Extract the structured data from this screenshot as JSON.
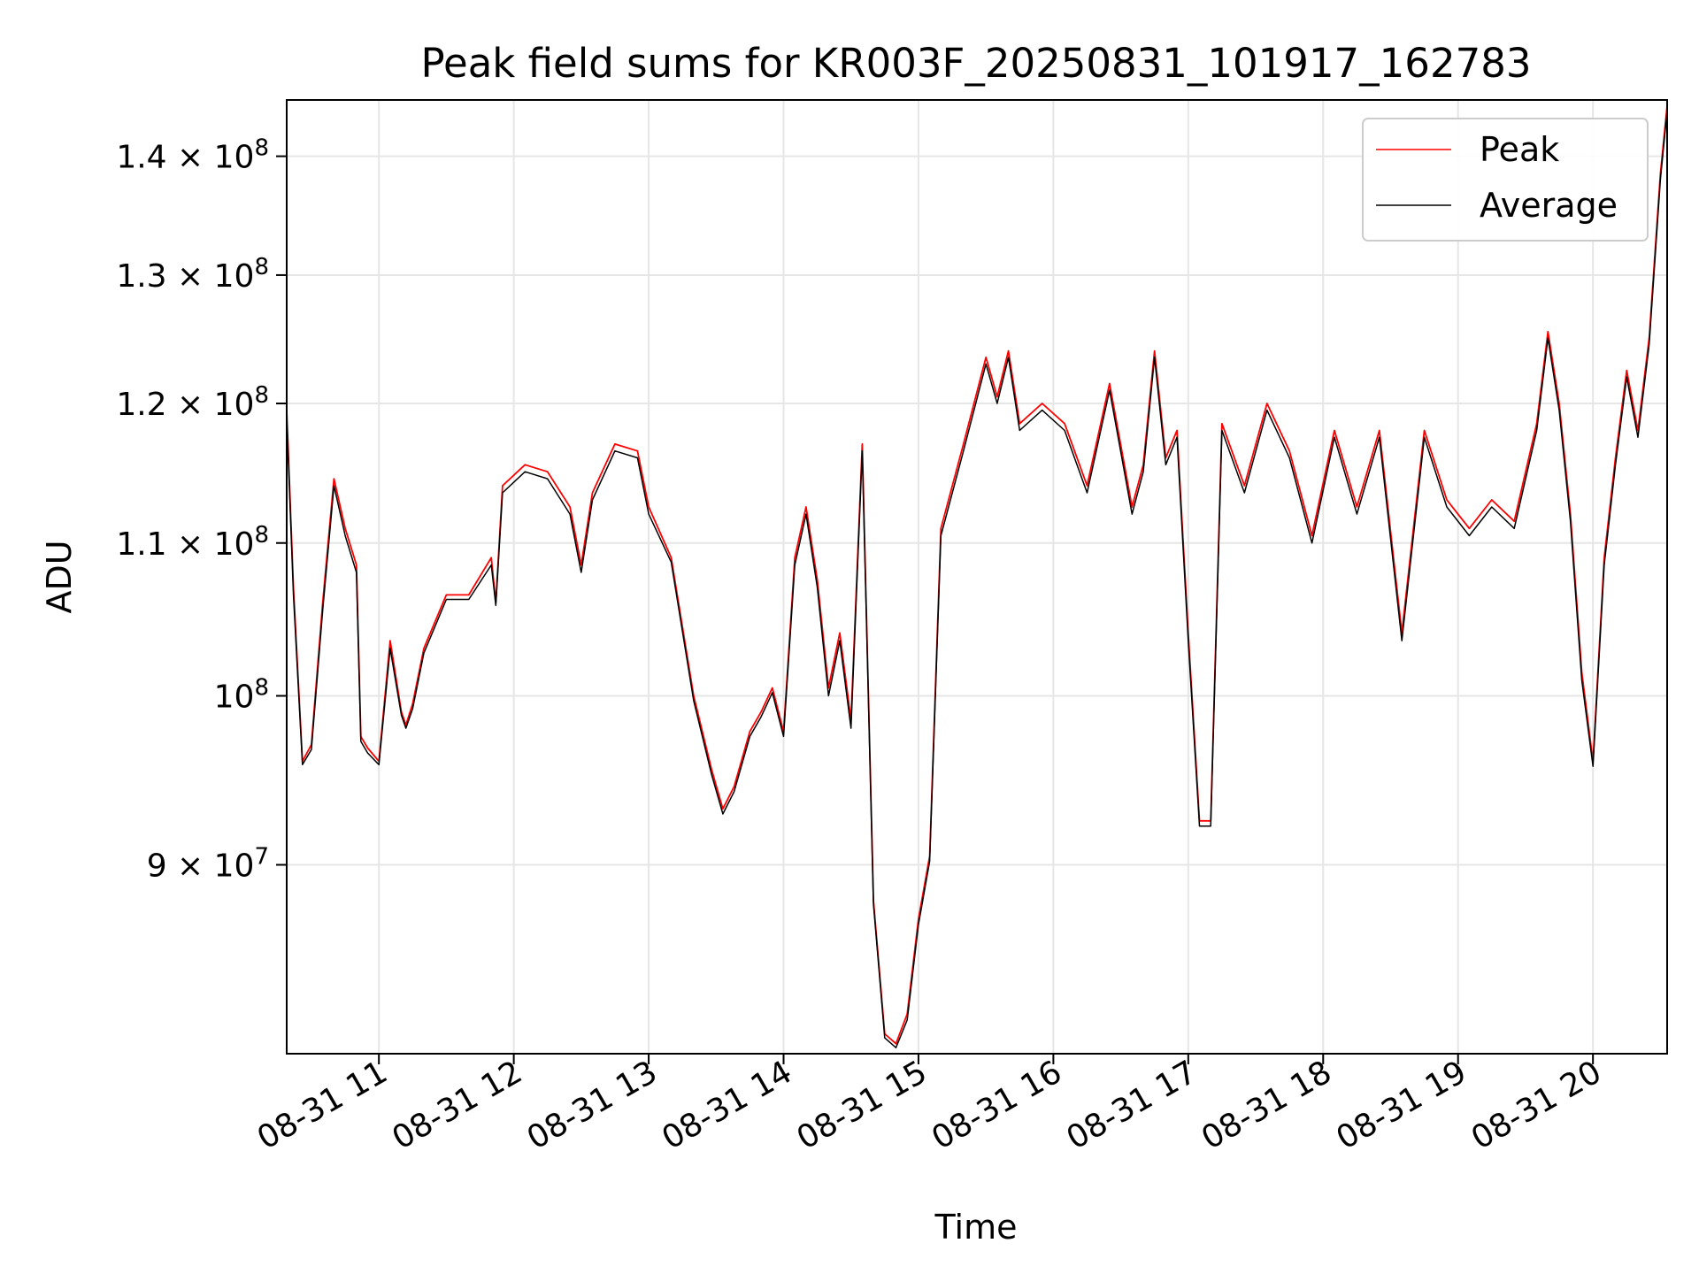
{
  "chart_data": {
    "type": "line",
    "title": "Peak field sums for KR003F_20250831_101917_162783",
    "xlabel": "Time",
    "ylabel": "ADU",
    "yscale": "log",
    "ylim": [
      80000000,
      145000000
    ],
    "xlim": [
      "08-31 10:19",
      "08-31 20:33"
    ],
    "grid": true,
    "legend_position": "upper right",
    "x_ticks": [
      "08-31 11",
      "08-31 12",
      "08-31 13",
      "08-31 14",
      "08-31 15",
      "08-31 16",
      "08-31 17",
      "08-31 18",
      "08-31 19",
      "08-31 20"
    ],
    "y_ticks": [
      {
        "value": 90000000,
        "label": "9 × 10",
        "exp": "7"
      },
      {
        "value": 100000000,
        "label": "10",
        "exp": "8"
      },
      {
        "value": 110000000,
        "label": "1.1 × 10",
        "exp": "8"
      },
      {
        "value": 120000000,
        "label": "1.2 × 10",
        "exp": "8"
      },
      {
        "value": 130000000,
        "label": "1.3 × 10",
        "exp": "8"
      },
      {
        "value": 140000000,
        "label": "1.4 × 10",
        "exp": "8"
      }
    ],
    "x": [
      "08-31 10:19",
      "08-31 10:22",
      "08-31 10:26",
      "08-31 10:30",
      "08-31 10:35",
      "08-31 10:40",
      "08-31 10:45",
      "08-31 10:50",
      "08-31 10:52",
      "08-31 10:55",
      "08-31 11:00",
      "08-31 11:05",
      "08-31 11:10",
      "08-31 11:12",
      "08-31 11:15",
      "08-31 11:20",
      "08-31 11:30",
      "08-31 11:40",
      "08-31 11:50",
      "08-31 11:52",
      "08-31 11:55",
      "08-31 12:05",
      "08-31 12:15",
      "08-31 12:25",
      "08-31 12:30",
      "08-31 12:35",
      "08-31 12:45",
      "08-31 12:55",
      "08-31 13:00",
      "08-31 13:10",
      "08-31 13:20",
      "08-31 13:28",
      "08-31 13:33",
      "08-31 13:38",
      "08-31 13:45",
      "08-31 13:50",
      "08-31 13:55",
      "08-31 14:00",
      "08-31 14:05",
      "08-31 14:10",
      "08-31 14:15",
      "08-31 14:20",
      "08-31 14:25",
      "08-31 14:30",
      "08-31 14:35",
      "08-31 14:40",
      "08-31 14:45",
      "08-31 14:50",
      "08-31 14:55",
      "08-31 15:00",
      "08-31 15:05",
      "08-31 15:10",
      "08-31 15:20",
      "08-31 15:30",
      "08-31 15:35",
      "08-31 15:40",
      "08-31 15:45",
      "08-31 15:55",
      "08-31 16:05",
      "08-31 16:15",
      "08-31 16:25",
      "08-31 16:35",
      "08-31 16:40",
      "08-31 16:45",
      "08-31 16:50",
      "08-31 16:55",
      "08-31 17:00",
      "08-31 17:05",
      "08-31 17:10",
      "08-31 17:15",
      "08-31 17:25",
      "08-31 17:35",
      "08-31 17:45",
      "08-31 17:55",
      "08-31 18:05",
      "08-31 18:15",
      "08-31 18:25",
      "08-31 18:35",
      "08-31 18:45",
      "08-31 18:55",
      "08-31 19:05",
      "08-31 19:15",
      "08-31 19:25",
      "08-31 19:35",
      "08-31 19:40",
      "08-31 19:45",
      "08-31 19:50",
      "08-31 19:55",
      "08-31 20:00",
      "08-31 20:05",
      "08-31 20:10",
      "08-31 20:15",
      "08-31 20:20",
      "08-31 20:25",
      "08-31 20:30",
      "08-31 20:33"
    ],
    "series": [
      {
        "name": "Peak",
        "color": "#ff0000",
        "values": [
          119500000,
          107000000,
          96000000,
          97000000,
          106000000,
          114500000,
          111000000,
          108500000,
          97500000,
          96800000,
          96000000,
          103500000,
          99000000,
          98200000,
          99500000,
          103000000,
          106500000,
          106500000,
          109000000,
          106000000,
          114000000,
          115500000,
          115000000,
          112500000,
          108500000,
          113500000,
          117000000,
          116500000,
          112500000,
          109000000,
          100000000,
          95500000,
          93200000,
          94500000,
          97800000,
          99000000,
          100500000,
          97800000,
          109000000,
          112500000,
          107500000,
          100500000,
          104000000,
          98500000,
          117000000,
          88000000,
          81000000,
          80500000,
          82000000,
          87000000,
          90500000,
          111000000,
          117000000,
          123500000,
          120500000,
          124000000,
          118500000,
          120000000,
          118500000,
          114000000,
          121500000,
          112500000,
          115500000,
          124000000,
          116000000,
          118000000,
          104000000,
          92500000,
          92500000,
          118500000,
          114000000,
          120000000,
          116500000,
          110500000,
          118000000,
          112500000,
          118000000,
          104000000,
          118000000,
          113000000,
          111000000,
          113000000,
          111500000,
          118500000,
          125500000,
          120000000,
          112000000,
          101500000,
          96000000,
          109000000,
          116000000,
          122500000,
          118000000,
          125000000,
          138500000,
          144500000
        ]
      },
      {
        "name": "Average",
        "color": "#000000",
        "values": [
          119000000,
          106500000,
          95800000,
          96700000,
          105500000,
          114000000,
          110500000,
          108000000,
          97200000,
          96500000,
          95800000,
          103000000,
          98800000,
          98000000,
          99200000,
          102700000,
          106200000,
          106200000,
          108500000,
          105800000,
          113500000,
          115000000,
          114500000,
          112000000,
          108000000,
          113000000,
          116500000,
          116000000,
          112000000,
          108700000,
          99700000,
          95200000,
          92900000,
          94200000,
          97500000,
          98700000,
          100200000,
          97500000,
          108500000,
          112000000,
          107000000,
          100000000,
          103500000,
          98000000,
          116500000,
          87800000,
          80800000,
          80300000,
          81700000,
          86700000,
          90200000,
          110500000,
          116500000,
          123000000,
          120000000,
          123500000,
          118000000,
          119500000,
          118000000,
          113500000,
          121000000,
          112000000,
          115000000,
          123500000,
          115500000,
          117500000,
          103500000,
          92200000,
          92200000,
          118000000,
          113500000,
          119500000,
          116000000,
          110000000,
          117500000,
          112000000,
          117500000,
          103500000,
          117500000,
          112500000,
          110500000,
          112500000,
          111000000,
          118000000,
          125000000,
          119500000,
          111500000,
          101000000,
          95700000,
          108500000,
          115500000,
          122000000,
          117500000,
          124500000,
          138000000,
          144000000
        ]
      }
    ]
  }
}
